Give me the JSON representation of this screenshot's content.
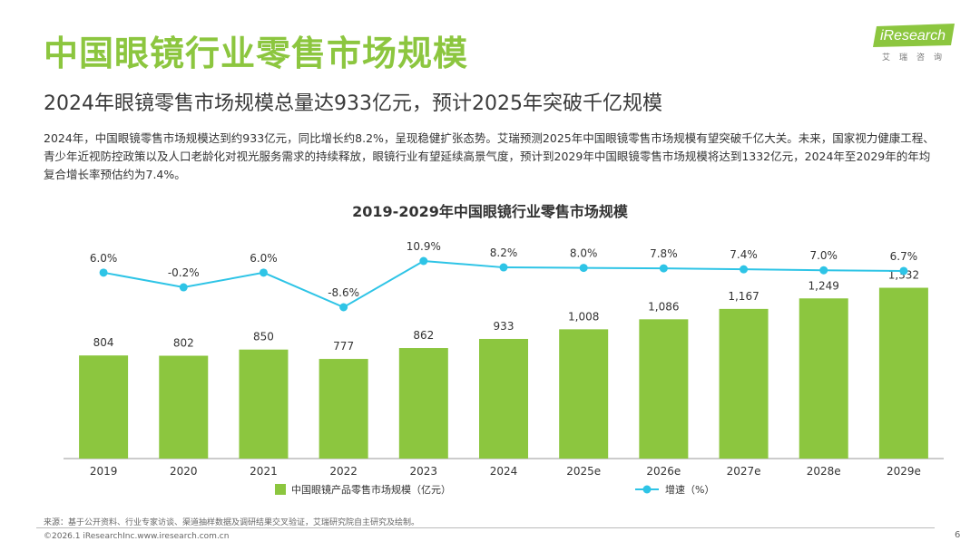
{
  "header": {
    "title": "中国眼镜行业零售市场规模",
    "subtitle": "2024年眼镜零售市场规模总量达933亿元，预计2025年突破千亿规模",
    "body": "2024年，中国眼镜零售市场规模达到约933亿元，同比增长约8.2%，呈现稳健扩张态势。艾瑞预测2025年中国眼镜零售市场规模有望突破千亿大关。未来，国家视力健康工程、青少年近视防控政策以及人口老龄化对视光服务需求的持续释放，眼镜行业有望延续高景气度，预计到2029年中国眼镜零售市场规模将达到1332亿元，2024年至2029年的年均复合增长率预估约为7.4%。"
  },
  "logo": {
    "name": "iResearch",
    "sub": "艾瑞咨询"
  },
  "chart_data": {
    "type": "bar",
    "title": "2019-2029年中国眼镜行业零售市场规模",
    "categories": [
      "2019",
      "2020",
      "2021",
      "2022",
      "2023",
      "2024",
      "2025e",
      "2026e",
      "2027e",
      "2028e",
      "2029e"
    ],
    "series": [
      {
        "name": "中国眼镜产品零售市场规模（亿元）",
        "type": "bar",
        "values": [
          804,
          802,
          850,
          777,
          862,
          933,
          1008,
          1086,
          1167,
          1249,
          1332
        ],
        "labels": [
          "804",
          "802",
          "850",
          "777",
          "862",
          "933",
          "1,008",
          "1,086",
          "1,167",
          "1,249",
          "1,332"
        ],
        "color": "#8cc63f"
      },
      {
        "name": "增速（%）",
        "type": "line",
        "values": [
          6.0,
          -0.2,
          6.0,
          -8.6,
          10.9,
          8.2,
          8.0,
          7.8,
          7.4,
          7.0,
          6.7
        ],
        "labels": [
          "6.0%",
          "-0.2%",
          "6.0%",
          "-8.6%",
          "10.9%",
          "8.2%",
          "8.0%",
          "7.8%",
          "7.4%",
          "7.0%",
          "6.7%"
        ],
        "color": "#2ec4e6"
      }
    ],
    "legend_position": "bottom",
    "grid": false
  },
  "footer": {
    "source": "来源：基于公开资料、行业专家访谈、渠道抽样数据及调研结果交叉验证，艾瑞研究院自主研究及绘制。",
    "copyright": "©2026.1 iResearchInc.www.iresearch.com.cn",
    "page": "6"
  }
}
